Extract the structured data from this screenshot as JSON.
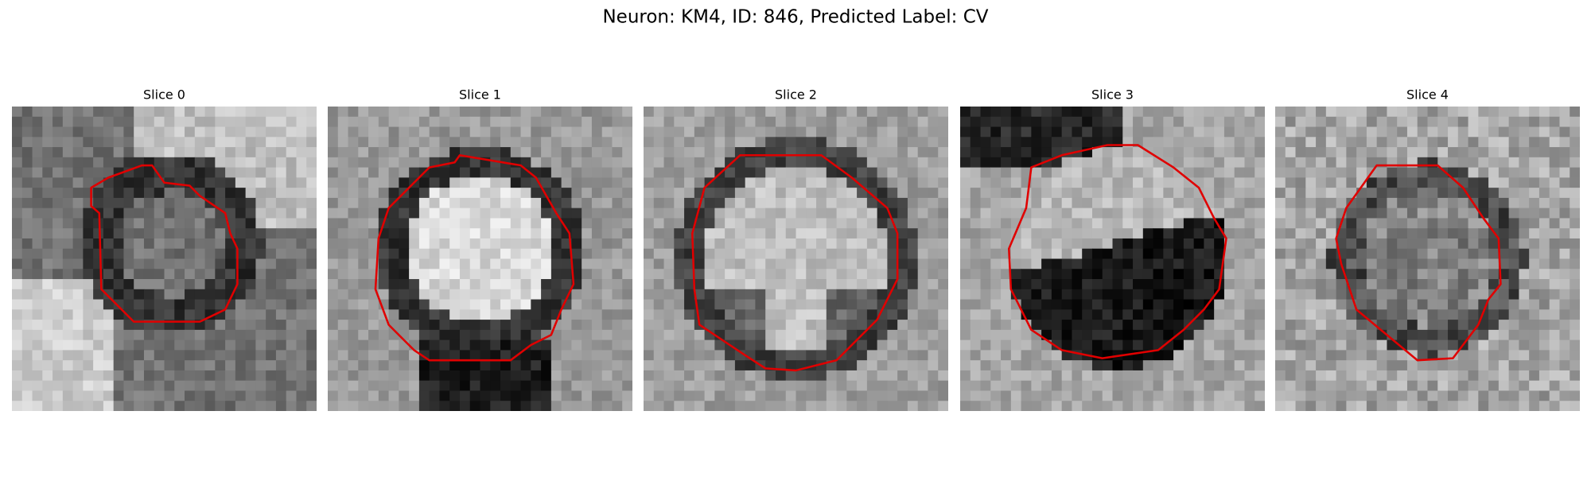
{
  "title": "Neuron: KM4, ID: 846, Predicted Label: CV",
  "panels": [
    {
      "title": "Slice 0"
    },
    {
      "title": "Slice 1"
    },
    {
      "title": "Slice 2"
    },
    {
      "title": "Slice 3"
    },
    {
      "title": "Slice 4"
    }
  ]
}
